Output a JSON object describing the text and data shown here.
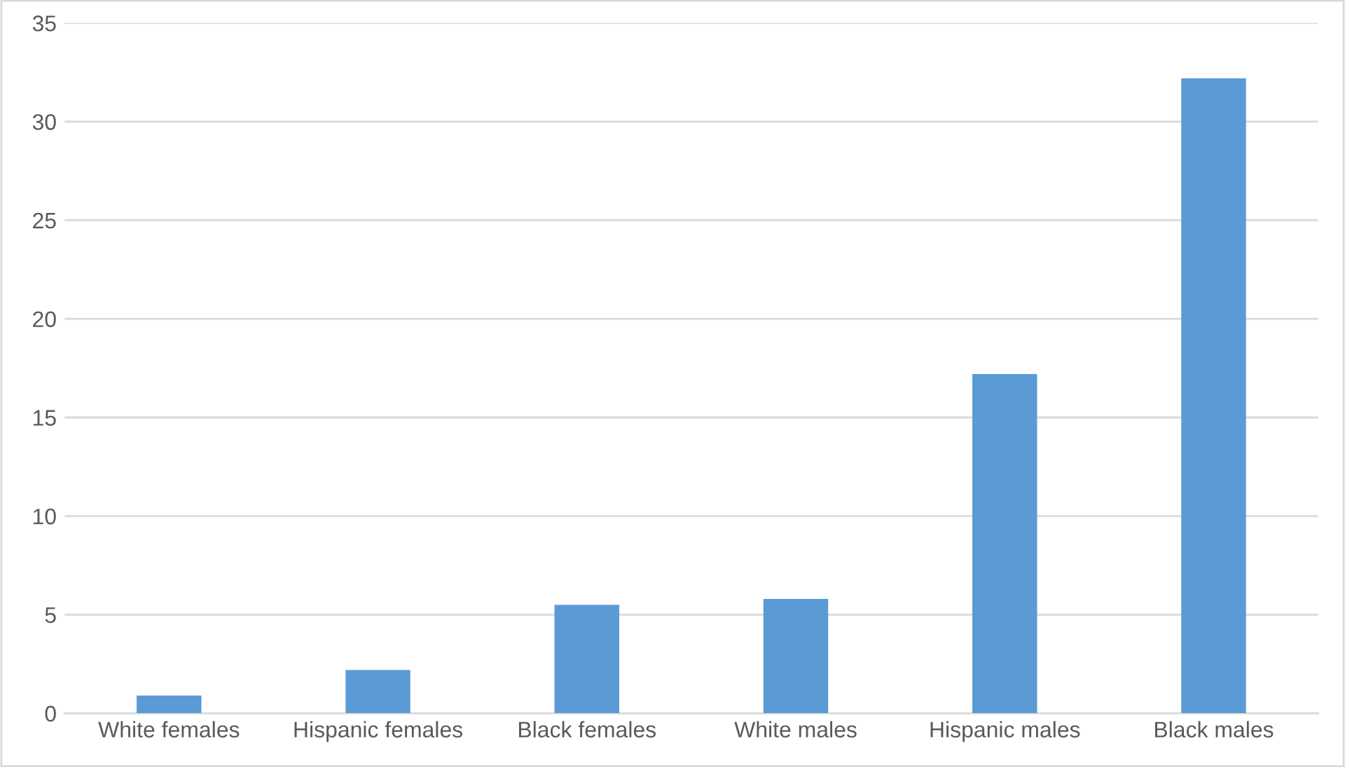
{
  "chart_data": {
    "type": "bar",
    "categories": [
      "White females",
      "Hispanic females",
      "Black females",
      "White males",
      "Hispanic males",
      "Black males"
    ],
    "values": [
      0.9,
      2.2,
      5.5,
      5.8,
      17.2,
      32.2
    ],
    "color": "#5b9bd5",
    "ylim": [
      0,
      35
    ],
    "yticks": [
      0,
      5,
      10,
      15,
      20,
      25,
      30,
      35
    ],
    "grid": "y",
    "legend": false
  }
}
